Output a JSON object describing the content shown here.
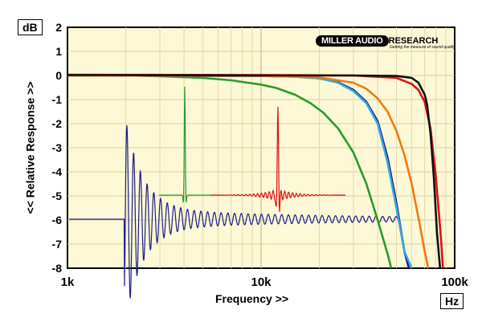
{
  "units": {
    "y_unit": "dB",
    "x_unit": "Hz"
  },
  "brand": {
    "name": "MILLER AUDIO",
    "name2": "RESEARCH",
    "tagline": "Getting the measure of sound quality"
  },
  "chart_data": {
    "type": "line",
    "xlabel": "Frequency >>",
    "ylabel": "<< Relative Response >>",
    "xscale": "log",
    "xlim": [
      1000,
      100000
    ],
    "ylim": [
      -8,
      2
    ],
    "x_ticks": [
      "1k",
      "10k",
      "100k"
    ],
    "y_ticks": [
      "2",
      "1",
      "0",
      "-1",
      "-2",
      "-3",
      "-4",
      "-5",
      "-6",
      "-7",
      "-8"
    ],
    "grid": true,
    "series": [
      {
        "color": "#2a9a2a",
        "x": [
          1000,
          2000,
          3000,
          5000,
          7000,
          10000,
          12000,
          15000,
          18000,
          21000,
          25000,
          30000,
          35000,
          40000,
          45000,
          47000
        ],
        "y": [
          0,
          0,
          -0.03,
          -0.1,
          -0.2,
          -0.38,
          -0.52,
          -0.8,
          -1.15,
          -1.55,
          -2.2,
          -3.2,
          -4.5,
          -6.0,
          -7.4,
          -8.0
        ]
      },
      {
        "color": "#1c1c8a",
        "x": [
          1000,
          10000,
          15000,
          20000,
          25000,
          30000,
          35000,
          40000,
          45000,
          50000,
          55000,
          58000
        ],
        "y": [
          0,
          -0.02,
          -0.05,
          -0.12,
          -0.28,
          -0.6,
          -1.1,
          -1.9,
          -3.4,
          -5.3,
          -7.3,
          -8.0
        ]
      },
      {
        "color": "#33aadd",
        "x": [
          1000,
          10000,
          15000,
          20000,
          25000,
          30000,
          35000,
          40000,
          45000,
          50000,
          55000,
          60000
        ],
        "y": [
          0,
          -0.02,
          -0.05,
          -0.12,
          -0.3,
          -0.65,
          -1.15,
          -2.0,
          -3.6,
          -5.5,
          -7.3,
          -8.0
        ]
      },
      {
        "color": "#ee7a10",
        "x": [
          1000,
          10000,
          20000,
          30000,
          35000,
          40000,
          45000,
          50000,
          55000,
          60000,
          65000,
          70000,
          73000
        ],
        "y": [
          0,
          -0.01,
          -0.08,
          -0.3,
          -0.55,
          -0.95,
          -1.5,
          -2.3,
          -3.3,
          -4.5,
          -5.9,
          -7.3,
          -8.0
        ]
      },
      {
        "color": "#dd1111",
        "x": [
          1000,
          10000,
          30000,
          50000,
          60000,
          65000,
          70000,
          75000,
          80000,
          85000,
          87000
        ],
        "y": [
          0.03,
          0.02,
          0,
          -0.1,
          -0.35,
          -0.6,
          -1.1,
          -2.2,
          -4.2,
          -6.8,
          -8.0
        ]
      },
      {
        "color": "#111111",
        "x": [
          1000,
          10000,
          30000,
          50000,
          60000,
          65000,
          70000,
          72000,
          75000,
          78000,
          81000,
          84000
        ],
        "y": [
          0.02,
          0.0,
          0.0,
          -0.02,
          -0.1,
          -0.3,
          -0.8,
          -1.2,
          -2.4,
          -4.2,
          -6.5,
          -8.0
        ]
      }
    ]
  }
}
